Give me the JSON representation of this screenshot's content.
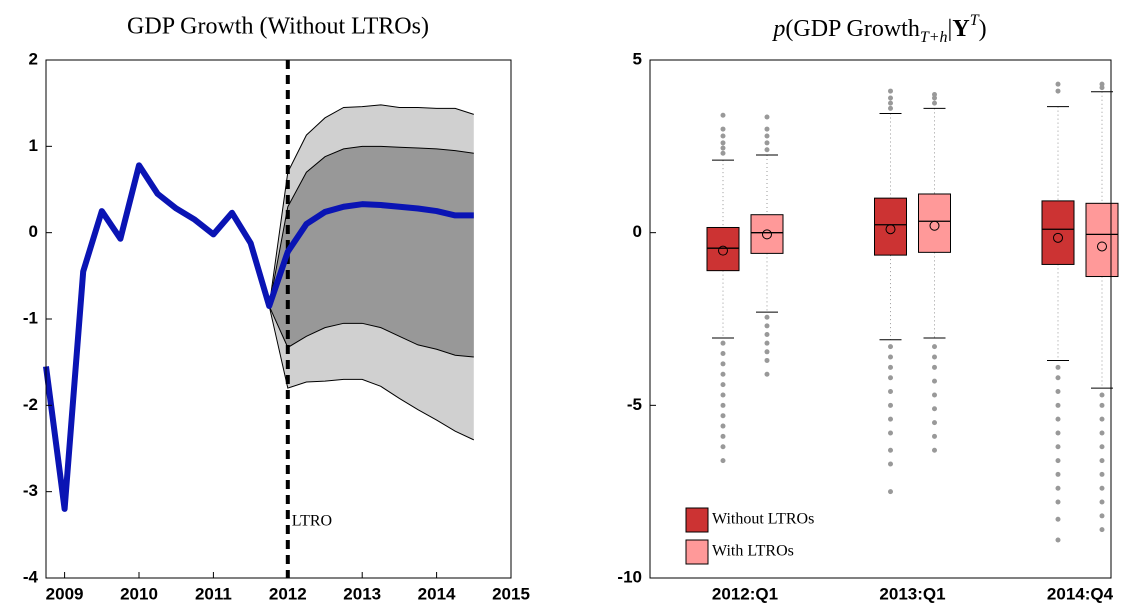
{
  "chart_data": [
    {
      "type": "fan",
      "title": "GDP Growth (Without LTROs)",
      "x": [
        2008.75,
        2009,
        2009.25,
        2009.5,
        2009.75,
        2010,
        2010.25,
        2010.5,
        2010.75,
        2011,
        2011.25,
        2011.5,
        2011.75,
        2012,
        2012.25,
        2012.5,
        2012.75,
        2013,
        2013.25,
        2013.5,
        2013.75,
        2014,
        2014.25,
        2014.5
      ],
      "values": [
        -1.55,
        -3.2,
        -0.45,
        0.25,
        -0.07,
        0.78,
        0.45,
        0.28,
        0.15,
        -0.02,
        0.23,
        -0.12,
        -0.85,
        -0.22,
        0.1,
        0.24,
        0.3,
        0.33,
        0.32,
        0.3,
        0.28,
        0.25,
        0.2,
        0.2
      ],
      "color": "#0a14b4",
      "band_x": [
        2011.75,
        2012,
        2012.25,
        2012.5,
        2012.75,
        2013,
        2013.25,
        2013.5,
        2013.75,
        2014,
        2014.25,
        2014.5
      ],
      "bands": [
        {
          "color": "#d0d0d0",
          "upper": [
            -0.85,
            0.7,
            1.13,
            1.33,
            1.45,
            1.46,
            1.48,
            1.45,
            1.45,
            1.44,
            1.44,
            1.37
          ],
          "lower": [
            -0.85,
            -1.8,
            -1.73,
            -1.72,
            -1.7,
            -1.7,
            -1.78,
            -1.92,
            -2.05,
            -2.17,
            -2.3,
            -2.4
          ]
        },
        {
          "color": "#989898",
          "upper": [
            -0.85,
            0.3,
            0.7,
            0.88,
            0.97,
            1.0,
            1.0,
            0.99,
            0.98,
            0.97,
            0.95,
            0.92
          ],
          "lower": [
            -0.85,
            -1.33,
            -1.2,
            -1.1,
            -1.05,
            -1.05,
            -1.1,
            -1.2,
            -1.3,
            -1.35,
            -1.42,
            -1.44
          ]
        }
      ],
      "marker_x": 2012,
      "marker_label": "LTRO",
      "xlim": [
        2008.75,
        2015
      ],
      "xticks": [
        2009,
        2010,
        2011,
        2012,
        2013,
        2014,
        2015
      ],
      "ylim": [
        -4,
        2
      ],
      "yticks": [
        -4,
        -3,
        -2,
        -1,
        0,
        1,
        2
      ]
    },
    {
      "type": "box",
      "title": [
        {
          "text": "p",
          "italic": true
        },
        {
          "text": "(GDP Growth"
        },
        {
          "text": "T+h",
          "italic": true,
          "shift": "sub"
        },
        {
          "text": "|"
        },
        {
          "text": "Y",
          "bold": true
        },
        {
          "text": "T",
          "italic": true,
          "shift": "super"
        },
        {
          "text": ")"
        }
      ],
      "categories": [
        "2012:Q1",
        "2013:Q1",
        "2014:Q4"
      ],
      "legend": "bottom-left",
      "ylim": [
        -10,
        5
      ],
      "yticks": [
        -10,
        -5,
        0,
        5
      ],
      "series": [
        {
          "name": "Without LTROs",
          "color": "#cc3333",
          "boxes": [
            {
              "whisker_low": -3.05,
              "q1": -1.1,
              "median": -0.45,
              "q3": 0.15,
              "whisker_high": 2.1,
              "mean": -0.52,
              "outliers": [
                2.3,
                2.45,
                2.6,
                2.8,
                3.0,
                3.4,
                -3.2,
                -3.5,
                -3.8,
                -4.1,
                -4.4,
                -4.7,
                -5.0,
                -5.3,
                -5.6,
                -5.9,
                -6.2,
                -6.6
              ]
            },
            {
              "whisker_low": -3.1,
              "q1": -0.65,
              "median": 0.23,
              "q3": 1.0,
              "whisker_high": 3.45,
              "mean": 0.1,
              "outliers": [
                3.6,
                3.75,
                3.9,
                4.1,
                -3.3,
                -3.6,
                -3.9,
                -4.2,
                -4.6,
                -5.0,
                -5.4,
                -5.8,
                -6.3,
                -6.7,
                -7.5
              ]
            },
            {
              "whisker_low": -3.7,
              "q1": -0.92,
              "median": 0.1,
              "q3": 0.92,
              "whisker_high": 3.65,
              "mean": -0.15,
              "outliers": [
                4.1,
                4.3,
                -3.9,
                -4.2,
                -4.6,
                -5.0,
                -5.4,
                -5.8,
                -6.2,
                -6.6,
                -7.0,
                -7.4,
                -7.8,
                -8.3,
                -8.9
              ]
            }
          ]
        },
        {
          "name": "With LTROs",
          "color": "#ff9999",
          "boxes": [
            {
              "whisker_low": -2.3,
              "q1": -0.6,
              "median": 0,
              "q3": 0.52,
              "whisker_high": 2.25,
              "mean": -0.05,
              "outliers": [
                2.4,
                2.6,
                2.8,
                3.0,
                3.35,
                -2.45,
                -2.7,
                -2.95,
                -3.2,
                -3.45,
                -3.7,
                -4.1
              ]
            },
            {
              "whisker_low": -3.05,
              "q1": -0.57,
              "median": 0.33,
              "q3": 1.12,
              "whisker_high": 3.6,
              "mean": 0.2,
              "outliers": [
                3.75,
                3.9,
                4.0,
                -3.3,
                -3.6,
                -3.9,
                -4.3,
                -4.7,
                -5.1,
                -5.5,
                -5.9,
                -6.3
              ]
            },
            {
              "whisker_low": -4.5,
              "q1": -1.27,
              "median": -0.05,
              "q3": 0.85,
              "whisker_high": 4.08,
              "mean": -0.4,
              "outliers": [
                4.2,
                4.3,
                -4.7,
                -5.0,
                -5.4,
                -5.8,
                -6.2,
                -6.6,
                -7.0,
                -7.4,
                -7.8,
                -8.2,
                -8.6
              ]
            }
          ]
        }
      ]
    }
  ]
}
